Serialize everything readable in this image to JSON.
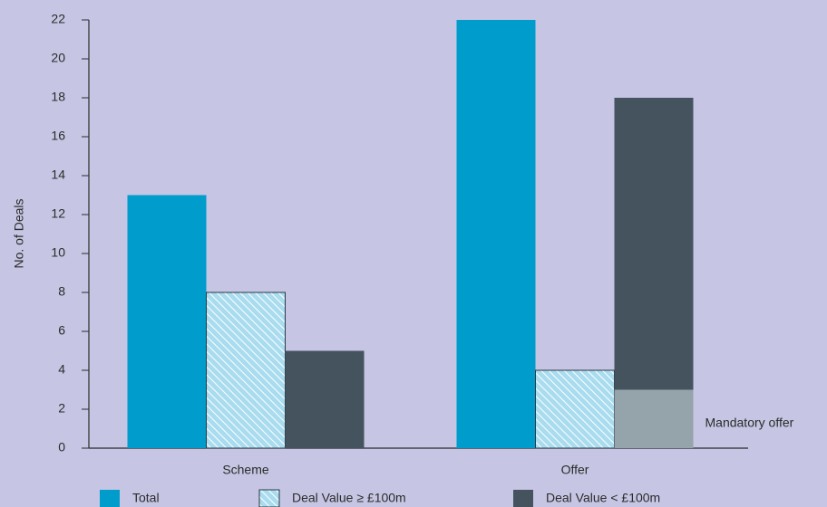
{
  "chart_data": {
    "type": "bar",
    "y_label": "No. of Deals",
    "categories": [
      "Scheme",
      "Offer"
    ],
    "series": [
      {
        "name": "Total",
        "color": "#009ccc",
        "values": [
          13,
          22
        ]
      },
      {
        "name": "Deal Value ≥ £100m",
        "color": "#a9dcef",
        "pattern": "hatch",
        "values": [
          8,
          4
        ]
      },
      {
        "name": "Mandatory offer",
        "color": "#95a3aa",
        "legend": false,
        "values": [
          null,
          3
        ]
      },
      {
        "name": "Deal Value < £100m",
        "color": "#44535e",
        "stack": true,
        "values": [
          5,
          15
        ]
      }
    ],
    "ylim": [
      0,
      22
    ],
    "yticks": [
      0,
      2,
      4,
      6,
      8,
      10,
      12,
      14,
      16,
      18,
      20,
      22
    ],
    "grid": false
  }
}
